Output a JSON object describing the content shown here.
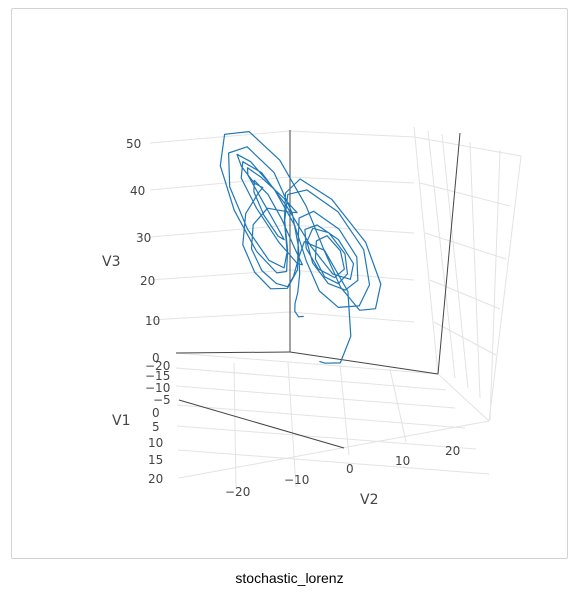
{
  "caption": "stochastic_lorenz",
  "colors": {
    "trajectory": "#1f77b4",
    "grid": "#e3e3e3",
    "axis_line": "#444444",
    "text": "#444444",
    "frame": "#d3d3d3"
  },
  "chart_data": {
    "type": "line3d",
    "title": "",
    "axes": {
      "x": {
        "label": "V1",
        "range": [
          -20,
          20
        ],
        "ticks": [
          "−20",
          "−15",
          "−10",
          "−5",
          "0",
          "5",
          "10",
          "15",
          "20"
        ]
      },
      "y": {
        "label": "V2",
        "range": [
          -28,
          28
        ],
        "ticks": [
          "−20",
          "−10",
          "0",
          "10",
          "20"
        ]
      },
      "z": {
        "label": "V3",
        "range": [
          0,
          50
        ],
        "ticks": [
          "0",
          "10",
          "20",
          "30",
          "40",
          "50"
        ]
      }
    },
    "grid": true,
    "series": [
      {
        "name": "",
        "description_points": "stochastic Lorenz attractor trajectory",
        "points": [
          [
            0.5,
            0.5,
            0.5
          ],
          [
            1.5,
            2.1,
            0.9
          ],
          [
            4.0,
            6.5,
            3.0
          ],
          [
            8.2,
            11.0,
            12.0
          ],
          [
            10.5,
            12.3,
            23.5
          ],
          [
            8.0,
            7.2,
            30.5
          ],
          [
            3.5,
            1.4,
            29.0
          ],
          [
            1.6,
            -1.0,
            24.0
          ],
          [
            2.2,
            -2.8,
            20.0
          ],
          [
            3.0,
            -4.4,
            18.0
          ],
          [
            4.6,
            -6.8,
            19.4
          ],
          [
            6.4,
            -9.6,
            23.0
          ],
          [
            6.2,
            -11.5,
            27.5
          ],
          [
            3.0,
            -11.0,
            31.0
          ],
          [
            -2.0,
            -8.0,
            32.0
          ],
          [
            -6.5,
            -4.0,
            29.0
          ],
          [
            -9.8,
            -2.5,
            27.0
          ],
          [
            -12.4,
            -6.2,
            28.5
          ],
          [
            -12.8,
            -11.0,
            32.0
          ],
          [
            -10.0,
            -13.5,
            35.5
          ],
          [
            -5.0,
            -12.5,
            37.0
          ],
          [
            -1.0,
            -9.0,
            34.5
          ],
          [
            -0.8,
            -6.0,
            29.0
          ],
          [
            -2.6,
            -5.0,
            25.0
          ],
          [
            -5.2,
            -7.0,
            24.0
          ],
          [
            -8.0,
            -10.5,
            26.5
          ],
          [
            -9.6,
            -12.6,
            30.5
          ],
          [
            -8.2,
            -11.8,
            34.0
          ],
          [
            -4.6,
            -8.0,
            33.5
          ],
          [
            -2.4,
            -4.8,
            29.5
          ],
          [
            -2.0,
            -2.6,
            24.0
          ],
          [
            -3.2,
            -1.4,
            19.5
          ],
          [
            -5.8,
            -3.2,
            18.0
          ],
          [
            -8.6,
            -7.8,
            20.5
          ],
          [
            -11.0,
            -12.8,
            26.0
          ],
          [
            -11.6,
            -15.8,
            32.0
          ],
          [
            -8.8,
            -14.2,
            37.5
          ],
          [
            -3.4,
            -8.6,
            39.0
          ],
          [
            1.6,
            -2.4,
            35.5
          ],
          [
            4.8,
            3.2,
            29.0
          ],
          [
            7.4,
            8.4,
            25.0
          ],
          [
            10.8,
            13.4,
            26.5
          ],
          [
            13.0,
            15.2,
            31.5
          ],
          [
            12.2,
            12.0,
            36.0
          ],
          [
            8.8,
            6.4,
            36.5
          ],
          [
            5.4,
            2.4,
            33.0
          ],
          [
            4.2,
            1.8,
            28.0
          ],
          [
            5.4,
            4.4,
            24.5
          ],
          [
            7.8,
            8.8,
            24.5
          ],
          [
            9.8,
            12.0,
            28.0
          ],
          [
            9.8,
            11.6,
            32.0
          ],
          [
            7.4,
            8.2,
            33.5
          ],
          [
            5.0,
            4.8,
            30.5
          ],
          [
            4.4,
            3.8,
            26.0
          ],
          [
            5.6,
            5.8,
            23.0
          ],
          [
            8.2,
            9.6,
            23.5
          ],
          [
            10.6,
            12.8,
            27.5
          ],
          [
            11.4,
            13.0,
            32.5
          ],
          [
            9.4,
            9.2,
            35.5
          ],
          [
            6.2,
            4.6,
            34.0
          ],
          [
            4.2,
            2.2,
            29.5
          ],
          [
            4.4,
            3.0,
            25.0
          ],
          [
            6.2,
            6.6,
            22.0
          ],
          [
            9.4,
            11.4,
            23.0
          ],
          [
            12.4,
            15.6,
            27.5
          ],
          [
            13.6,
            16.4,
            33.5
          ],
          [
            11.6,
            12.4,
            38.0
          ],
          [
            7.2,
            5.6,
            38.5
          ],
          [
            3.2,
            0.8,
            34.0
          ],
          [
            1.6,
            -0.6,
            27.5
          ],
          [
            2.0,
            -1.6,
            21.5
          ],
          [
            3.6,
            -4.4,
            18.0
          ],
          [
            5.4,
            -8.2,
            18.5
          ],
          [
            6.6,
            -11.4,
            22.5
          ],
          [
            6.0,
            -13.6,
            28.0
          ],
          [
            2.6,
            -12.6,
            33.0
          ],
          [
            -2.4,
            -9.8,
            35.0
          ],
          [
            -6.8,
            -9.6,
            33.5
          ],
          [
            -10.4,
            -12.4,
            32.0
          ],
          [
            -11.8,
            -15.4,
            34.5
          ],
          [
            -9.6,
            -15.6,
            38.5
          ],
          [
            -5.2,
            -11.4,
            40.0
          ],
          [
            -1.4,
            -5.6,
            37.0
          ],
          [
            0.4,
            -1.2,
            30.5
          ],
          [
            1.6,
            0.8,
            23.5
          ],
          [
            3.8,
            3.6,
            18.5
          ],
          [
            7.2,
            8.6,
            17.5
          ],
          [
            11.2,
            14.8,
            21.0
          ],
          [
            14.2,
            18.8,
            28.0
          ],
          [
            14.6,
            18.6,
            36.0
          ],
          [
            11.0,
            12.6,
            41.5
          ],
          [
            5.4,
            4.2,
            42.0
          ],
          [
            0.8,
            -1.8,
            37.5
          ],
          [
            -1.6,
            -4.0,
            30.0
          ],
          [
            -2.2,
            -4.4,
            23.0
          ],
          [
            -3.2,
            -5.6,
            17.5
          ],
          [
            -5.4,
            -8.6,
            15.5
          ],
          [
            -9.0,
            -13.8,
            17.5
          ],
          [
            -13.2,
            -19.0,
            23.5
          ],
          [
            -15.8,
            -21.6,
            31.5
          ],
          [
            -14.6,
            -19.2,
            39.5
          ],
          [
            -9.6,
            -11.8,
            44.0
          ],
          [
            -3.2,
            -3.6,
            42.5
          ],
          [
            1.6,
            2.6,
            36.0
          ],
          [
            4.0,
            6.2,
            28.0
          ],
          [
            6.2,
            9.6,
            21.5
          ],
          [
            9.6,
            14.4,
            19.0
          ],
          [
            13.8,
            19.4,
            22.5
          ],
          [
            16.6,
            22.2,
            30.0
          ],
          [
            15.8,
            19.6,
            38.5
          ],
          [
            10.8,
            11.4,
            44.0
          ],
          [
            4.2,
            2.6,
            43.5
          ],
          [
            -0.4,
            -2.6,
            37.0
          ],
          [
            -2.0,
            -4.2,
            29.5
          ],
          [
            -2.4,
            -4.6,
            22.5
          ],
          [
            -3.6,
            -6.2,
            18.0
          ],
          [
            -6.4,
            -10.4,
            17.5
          ],
          [
            -10.2,
            -15.6,
            21.5
          ],
          [
            -13.4,
            -19.4,
            28.5
          ],
          [
            -13.6,
            -18.6,
            36.0
          ],
          [
            -9.6,
            -12.8,
            40.5
          ],
          [
            -4.0,
            -5.6,
            39.0
          ],
          [
            -0.6,
            -1.6,
            32.5
          ],
          [
            0.2,
            -1.0,
            25.5
          ],
          [
            0.2,
            -1.6,
            19.5
          ],
          [
            -0.2,
            -2.8,
            15.0
          ],
          [
            -0.8,
            -4.0,
            12.0
          ],
          [
            -1.2,
            -4.4,
            10.0
          ],
          [
            -1.0,
            -3.6,
            9.0
          ],
          [
            -0.6,
            -2.2,
            9.5
          ]
        ]
      }
    ]
  }
}
